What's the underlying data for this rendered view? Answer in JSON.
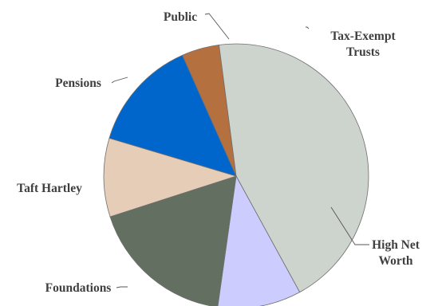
{
  "chart_data": {
    "type": "pie",
    "title": "",
    "unit": "percent",
    "start_angle_deg": -24,
    "direction": "clockwise",
    "slices": [
      {
        "label": "Tax-Exempt Trusts",
        "label_lines": [
          "Tax-Exempt",
          "Trusts"
        ],
        "value": 4.6,
        "color": "#b5703f"
      },
      {
        "label": "High Net Worth",
        "label_lines": [
          "High Net",
          "Worth"
        ],
        "value": 44.1,
        "color": "#cdd3cd"
      },
      {
        "label": "Foundations",
        "label_lines": [
          "Foundations"
        ],
        "value": 10.2,
        "color": "#ccccff"
      },
      {
        "label": "Taft Hartley",
        "label_lines": [
          "Taft Hartley"
        ],
        "value": 17.8,
        "color": "#637061"
      },
      {
        "label": "Pensions",
        "label_lines": [
          "Pensions"
        ],
        "value": 9.6,
        "color": "#e5cdb8"
      },
      {
        "label": "Public",
        "label_lines": [
          "Public"
        ],
        "value": 13.7,
        "color": "#0066cc"
      }
    ]
  }
}
